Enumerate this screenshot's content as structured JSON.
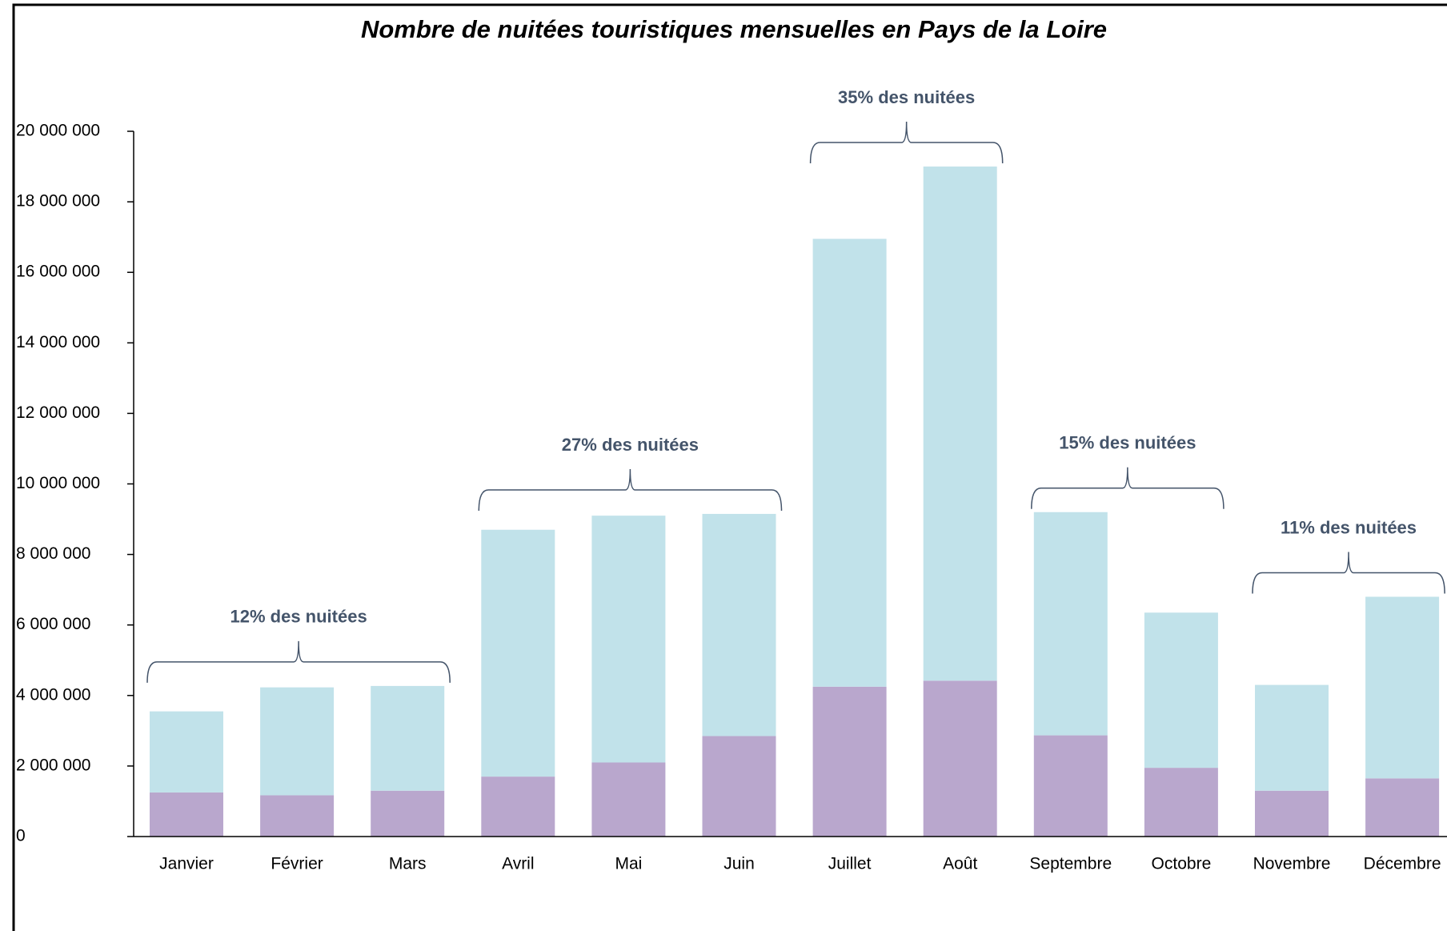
{
  "chart_data": {
    "type": "stacked_bar",
    "title": "Nombre de nuitées touristiques mensuelles en Pays de la Loire",
    "categories": [
      "Janvier",
      "Février",
      "Mars",
      "Avril",
      "Mai",
      "Juin",
      "Juillet",
      "Août",
      "Septembre",
      "Octobre",
      "Novembre",
      "Décembre"
    ],
    "series": [
      {
        "color": "#b9a7cd",
        "values": [
          1250000,
          1170000,
          1300000,
          1700000,
          2100000,
          2850000,
          4250000,
          4420000,
          2870000,
          1950000,
          1300000,
          1650000
        ]
      },
      {
        "color": "#c1e2ea",
        "values": [
          2300000,
          3060000,
          2970000,
          7000000,
          7000000,
          6300000,
          12700000,
          14580000,
          6330000,
          4400000,
          3000000,
          5150000
        ]
      }
    ],
    "ylim": [
      0,
      20000000
    ],
    "yticks": [
      0,
      {
        "value": 2000000,
        "label": "2 000 000"
      },
      {
        "value": 4000000,
        "label": "4 000 000"
      },
      {
        "value": 6000000,
        "label": "6 000 000"
      },
      {
        "value": 8000000,
        "label": "8 000 000"
      },
      {
        "value": 10000000,
        "label": "10 000 000"
      },
      {
        "value": 12000000,
        "label": "12 000 000"
      },
      {
        "value": 14000000,
        "label": "14 000 000"
      },
      {
        "value": 16000000,
        "label": "16 000 000"
      },
      {
        "value": 18000000,
        "label": "18 000 000"
      },
      {
        "value": 20000000,
        "label": "20 000 000"
      }
    ],
    "annotations": [
      "12% des nuitées",
      "27% des nuitées",
      "35% des nuitées",
      "15% des nuitées",
      "11% des nuitées"
    ]
  }
}
